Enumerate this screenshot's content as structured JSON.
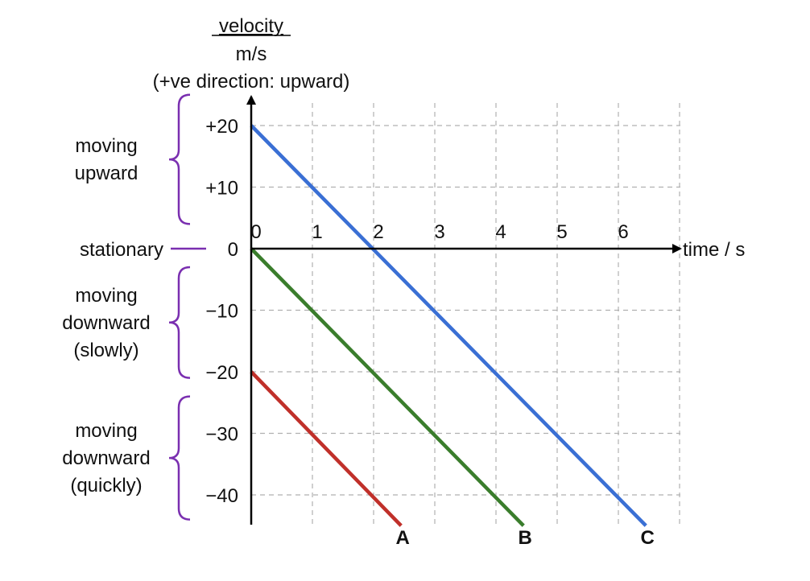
{
  "chart_data": {
    "type": "line",
    "ylabel": "velocity",
    "yunit": "m/s",
    "ynote": "(+ve direction: upward)",
    "xlabel": "time / s",
    "xlim": [
      0,
      7
    ],
    "ylim": [
      -45,
      25
    ],
    "xticks": [
      "0",
      "1",
      "2",
      "3",
      "4",
      "5",
      "6"
    ],
    "yticks": [
      {
        "value": 20,
        "label": "+20"
      },
      {
        "value": 10,
        "label": "+10"
      },
      {
        "value": 0,
        "label": "0"
      },
      {
        "value": -10,
        "label": "−10"
      },
      {
        "value": -20,
        "label": "−20"
      },
      {
        "value": -30,
        "label": "−30"
      },
      {
        "value": -40,
        "label": "−40"
      }
    ],
    "grid": true,
    "series": [
      {
        "name": "A",
        "color": "#c0302a",
        "points": [
          [
            0,
            -20
          ],
          [
            2.45,
            -45
          ]
        ]
      },
      {
        "name": "B",
        "color": "#3a7d2c",
        "points": [
          [
            0,
            0
          ],
          [
            4.45,
            -45
          ]
        ]
      },
      {
        "name": "C",
        "color": "#3a6fd4",
        "points": [
          [
            0,
            20
          ],
          [
            6.45,
            -45
          ]
        ]
      }
    ],
    "regions": [
      {
        "label": "moving\nupward",
        "range": [
          4,
          25
        ],
        "bracket": true
      },
      {
        "label": "stationary",
        "range": [
          0,
          0
        ],
        "bracket": false
      },
      {
        "label": "moving\ndownward\n(slowly)",
        "range": [
          -21,
          -3
        ],
        "bracket": true
      },
      {
        "label": "moving\ndownward\n(quickly)",
        "range": [
          -44,
          -24
        ],
        "bracket": true
      }
    ],
    "colors": {
      "axis": "#000000",
      "grid": "#b0b0b0",
      "bracket": "#7a2fb0"
    }
  }
}
